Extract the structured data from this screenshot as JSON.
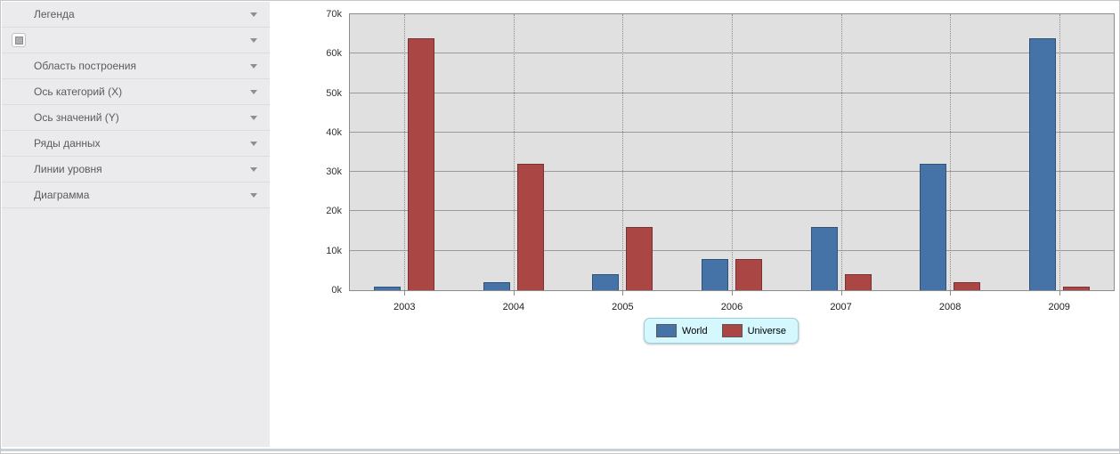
{
  "window": {
    "bg": "#ffffff",
    "border_color": "#c6c6c6",
    "bottom_strip_color": "#c9d0d8"
  },
  "sidebar": {
    "bg": "#ebebed",
    "items": [
      {
        "key": "legend",
        "label": "Легенда",
        "icon": null
      },
      {
        "key": "untitled",
        "label": "",
        "icon": "swatch-icon"
      },
      {
        "key": "plot-area",
        "label": "Область построения",
        "icon": null
      },
      {
        "key": "x-axis",
        "label": "Ось категорий (X)",
        "icon": null
      },
      {
        "key": "y-axis",
        "label": "Ось значений (Y)",
        "icon": null
      },
      {
        "key": "data-series",
        "label": "Ряды данных",
        "icon": null
      },
      {
        "key": "constant-lines",
        "label": "Линии уровня",
        "icon": null
      },
      {
        "key": "chart",
        "label": "Диаграмма",
        "icon": null
      }
    ]
  },
  "chart_data": {
    "type": "bar",
    "title": "",
    "categories": [
      "2003",
      "2004",
      "2005",
      "2006",
      "2007",
      "2008",
      "2009"
    ],
    "series": [
      {
        "name": "World",
        "color": "#4572a7",
        "values": [
          1000,
          2000,
          4000,
          8000,
          16000,
          32000,
          64000
        ]
      },
      {
        "name": "Universe",
        "color": "#aa4643",
        "values": [
          64000,
          32000,
          16000,
          8000,
          4000,
          2000,
          1000
        ]
      }
    ],
    "xlabel": "",
    "ylabel": "",
    "ylim": [
      0,
      70000
    ],
    "ytick_interval": 10000,
    "ytick_labels": [
      "0k",
      "10k",
      "20k",
      "30k",
      "40k",
      "50k",
      "60k",
      "70k"
    ],
    "grid": true,
    "plot_bg": "#e0e0e0",
    "legend": {
      "position": "bottom",
      "bg": "#d5f8fe",
      "border": "#9fcedd",
      "entries": [
        "World",
        "Universe"
      ]
    }
  }
}
